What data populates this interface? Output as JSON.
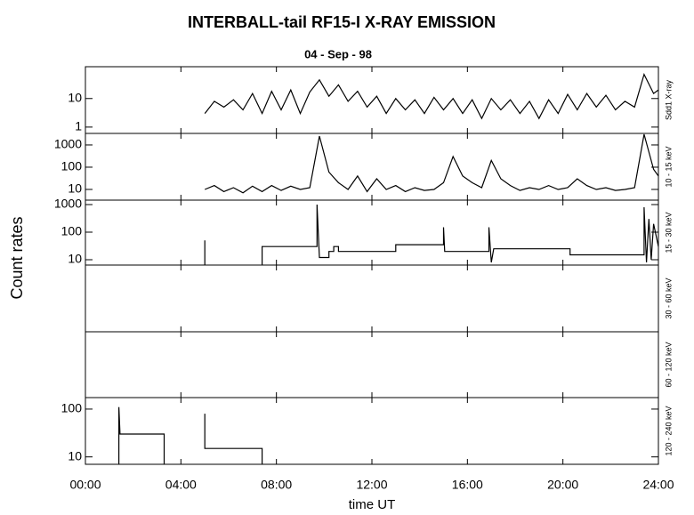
{
  "title": "INTERBALL-tail  RF15-I   X-RAY  EMISSION",
  "subtitle": "04 - Sep - 98",
  "ylabel": "Count  rates",
  "xlabel": "time UT",
  "chart_data": [
    {
      "type": "line",
      "label": "Sdd1 X-ray",
      "log_y": true,
      "xlim": [
        0,
        24
      ],
      "ylim": [
        0.6,
        130
      ],
      "yticks": [
        1,
        10
      ],
      "series": [
        {
          "color": "#000000",
          "x": [
            5.0,
            5.4,
            5.8,
            6.2,
            6.6,
            7.0,
            7.4,
            7.8,
            8.2,
            8.6,
            9.0,
            9.4,
            9.8,
            10.2,
            10.6,
            11.0,
            11.4,
            11.8,
            12.2,
            12.6,
            13.0,
            13.4,
            13.8,
            14.2,
            14.6,
            15.0,
            15.4,
            15.8,
            16.2,
            16.6,
            17.0,
            17.4,
            17.8,
            18.2,
            18.6,
            19.0,
            19.4,
            19.8,
            20.2,
            20.6,
            21.0,
            21.4,
            21.8,
            22.2,
            22.6,
            23.0,
            23.4,
            23.8,
            24.0
          ],
          "values": [
            3,
            8,
            5,
            9,
            4,
            15,
            3,
            18,
            4,
            20,
            3,
            17,
            45,
            12,
            30,
            8,
            18,
            5,
            12,
            3,
            10,
            4,
            9,
            3,
            11,
            4,
            10,
            3,
            9,
            2,
            10,
            4,
            9,
            3,
            8,
            2,
            9,
            3,
            14,
            4,
            15,
            5,
            13,
            4,
            8,
            5,
            70,
            15,
            20
          ]
        }
      ]
    },
    {
      "type": "line",
      "label": "10 - 15 keV",
      "log_y": true,
      "xlim": [
        0,
        24
      ],
      "ylim": [
        3.3,
        3300
      ],
      "yticks": [
        10,
        100,
        1000
      ],
      "series": [
        {
          "color": "#000000",
          "x": [
            5.0,
            5.4,
            5.8,
            6.2,
            6.6,
            7.0,
            7.4,
            7.8,
            8.2,
            8.6,
            9.0,
            9.4,
            9.8,
            10.2,
            10.6,
            11.0,
            11.4,
            11.8,
            12.2,
            12.6,
            13.0,
            13.4,
            13.8,
            14.2,
            14.6,
            15.0,
            15.4,
            15.8,
            16.2,
            16.6,
            17.0,
            17.4,
            17.8,
            18.2,
            18.6,
            19.0,
            19.4,
            19.8,
            20.2,
            20.6,
            21.0,
            21.4,
            21.8,
            22.2,
            22.6,
            23.0,
            23.4,
            23.8,
            24.0
          ],
          "values": [
            10,
            15,
            8,
            12,
            7,
            14,
            8,
            15,
            9,
            14,
            10,
            12,
            2500,
            60,
            20,
            10,
            40,
            8,
            30,
            10,
            15,
            8,
            12,
            9,
            10,
            20,
            300,
            40,
            20,
            12,
            200,
            30,
            15,
            9,
            12,
            10,
            15,
            10,
            12,
            30,
            15,
            10,
            12,
            9,
            10,
            12,
            3000,
            80,
            40
          ]
        }
      ]
    },
    {
      "type": "line",
      "label": "15 - 30 keV",
      "log_y": true,
      "xlim": [
        0,
        24
      ],
      "ylim": [
        6.4,
        1450
      ],
      "yticks": [
        10,
        100,
        1000
      ],
      "series": [
        {
          "color": "#000000",
          "x": [
            5.0,
            5.0,
            5.01,
            7.4,
            7.4,
            9.7,
            9.7,
            9.8,
            10.2,
            10.2,
            10.4,
            10.4,
            10.6,
            10.6,
            13.0,
            13.0,
            15.0,
            15.0,
            15.05,
            16.9,
            16.9,
            17.0,
            17.1,
            20.3,
            20.3,
            23.4,
            23.4,
            23.5,
            23.6,
            23.7,
            23.8,
            24.0
          ],
          "values": [
            6.4,
            50,
            null,
            6.4,
            30,
            30,
            1000,
            12,
            12,
            20,
            20,
            30,
            30,
            20,
            20,
            35,
            35,
            150,
            20,
            20,
            150,
            8,
            25,
            25,
            15,
            15,
            800,
            8,
            300,
            10,
            200,
            30
          ]
        }
      ]
    },
    {
      "type": "line",
      "label": "30 - 60 keV",
      "xlim": [
        0,
        24
      ]
    },
    {
      "type": "line",
      "label": "60 - 120 keV",
      "xlim": [
        0,
        24
      ]
    },
    {
      "type": "line",
      "label": "120 - 240 keV",
      "log_y": true,
      "xlim": [
        0,
        24
      ],
      "ylim": [
        7,
        174
      ],
      "yticks": [
        10,
        100
      ],
      "xticks": [
        {
          "value": 0,
          "label": "00:00"
        },
        {
          "value": 4,
          "label": "04:00"
        },
        {
          "value": 8,
          "label": "08:00"
        },
        {
          "value": 12,
          "label": "12:00"
        },
        {
          "value": 16,
          "label": "16:00"
        },
        {
          "value": 20,
          "label": "20:00"
        },
        {
          "value": 24,
          "label": "24:00"
        }
      ],
      "series": [
        {
          "color": "#000000",
          "x": [
            1.4,
            1.4,
            1.45,
            3.3,
            3.3,
            3.31,
            5.0,
            5.0,
            7.4,
            7.4
          ],
          "values": [
            7,
            110,
            30,
            30,
            7,
            null,
            80,
            15,
            15,
            7
          ]
        }
      ]
    }
  ]
}
